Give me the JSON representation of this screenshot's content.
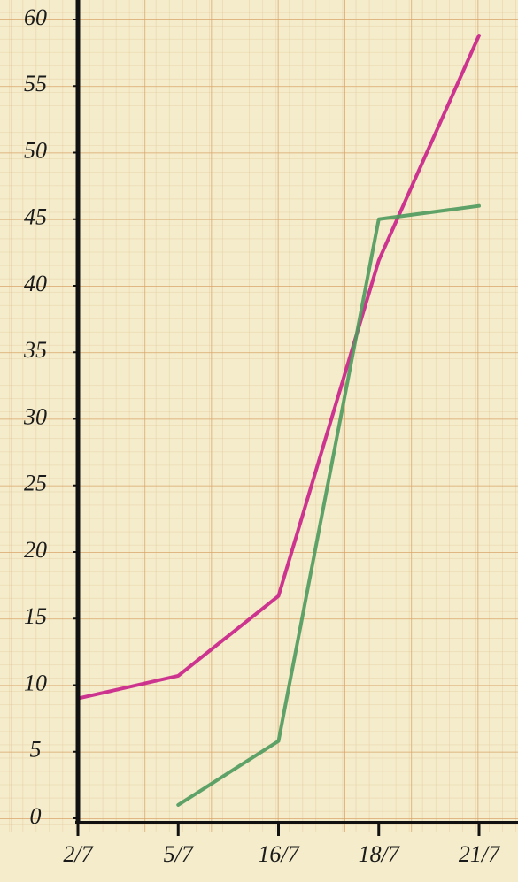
{
  "chart_data": {
    "type": "line",
    "categories": [
      "2/7",
      "5/7",
      "16/7",
      "18/7",
      "21/7"
    ],
    "series": [
      {
        "color": "#c8208a",
        "values": [
          9,
          10.7,
          16.7,
          41.9,
          58.8
        ]
      },
      {
        "color": "#4f9a5e",
        "values": [
          null,
          1,
          5.8,
          45,
          46
        ]
      }
    ],
    "ylim": [
      0,
      60
    ],
    "yticks": [
      0,
      5,
      10,
      15,
      20,
      25,
      30,
      35,
      40,
      45,
      50,
      55,
      60
    ]
  }
}
